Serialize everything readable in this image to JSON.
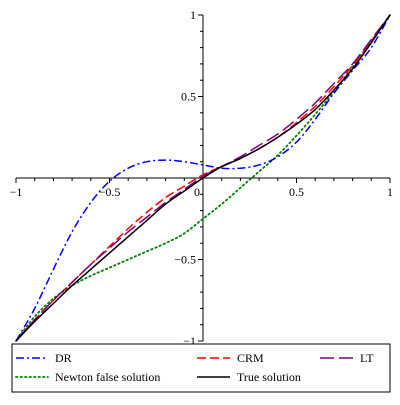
{
  "chart_data": {
    "type": "line",
    "title": "",
    "xlabel": "",
    "ylabel": "",
    "xlim": [
      -1,
      1
    ],
    "ylim": [
      -1,
      1
    ],
    "grid": false,
    "legend_position": "bottom",
    "x_ticks": [
      {
        "value": -1,
        "label": "−1"
      },
      {
        "value": -0.5,
        "label": "−0.5"
      },
      {
        "value": 0,
        "label": "0"
      },
      {
        "value": 0.5,
        "label": "0.5"
      },
      {
        "value": 1,
        "label": "1"
      }
    ],
    "y_ticks": [
      {
        "value": 1,
        "label": "1"
      },
      {
        "value": 0.5,
        "label": "0.5"
      },
      {
        "value": -0.5,
        "label": "−0.5"
      },
      {
        "value": -1,
        "label": "−1"
      }
    ],
    "series": [
      {
        "name": "DR",
        "color": "#0000ff",
        "dash": "dashdot",
        "x": [
          -1,
          -0.9,
          -0.8,
          -0.7,
          -0.6,
          -0.5,
          -0.4,
          -0.3,
          -0.2,
          -0.1,
          0,
          0.1,
          0.2,
          0.3,
          0.4,
          0.5,
          0.6,
          0.7,
          0.8,
          0.9,
          1
        ],
        "y": [
          -1,
          -0.8,
          -0.56,
          -0.33,
          -0.15,
          -0.02,
          0.06,
          0.1,
          0.11,
          0.1,
          0.08,
          0.06,
          0.06,
          0.08,
          0.13,
          0.22,
          0.36,
          0.52,
          0.66,
          0.8,
          1
        ]
      },
      {
        "name": "CRM",
        "color": "#ff0000",
        "dash": "dash",
        "x": [
          -1,
          -0.9,
          -0.8,
          -0.7,
          -0.6,
          -0.5,
          -0.4,
          -0.3,
          -0.2,
          -0.1,
          0,
          0.1,
          0.2,
          0.3,
          0.4,
          0.5,
          0.6,
          0.7,
          0.8,
          0.9,
          1
        ],
        "y": [
          -1,
          -0.87,
          -0.75,
          -0.64,
          -0.53,
          -0.42,
          -0.31,
          -0.21,
          -0.12,
          -0.05,
          0.02,
          0.07,
          0.12,
          0.18,
          0.25,
          0.34,
          0.44,
          0.56,
          0.69,
          0.84,
          1
        ]
      },
      {
        "name": "LT",
        "color": "#800080",
        "dash": "longdash",
        "x": [
          -1,
          -0.9,
          -0.8,
          -0.7,
          -0.6,
          -0.5,
          -0.4,
          -0.3,
          -0.2,
          -0.1,
          0,
          0.1,
          0.2,
          0.3,
          0.4,
          0.5,
          0.6,
          0.7,
          0.8,
          0.9,
          1
        ],
        "y": [
          -1,
          -0.87,
          -0.75,
          -0.64,
          -0.53,
          -0.43,
          -0.33,
          -0.24,
          -0.15,
          -0.07,
          0.01,
          0.07,
          0.13,
          0.2,
          0.27,
          0.36,
          0.46,
          0.58,
          0.7,
          0.85,
          1
        ]
      },
      {
        "name": "Newton false solution",
        "color": "#008000",
        "dash": "dot",
        "x": [
          -1,
          -0.9,
          -0.8,
          -0.7,
          -0.6,
          -0.5,
          -0.4,
          -0.3,
          -0.2,
          -0.1,
          0,
          0.1,
          0.2,
          0.3,
          0.4,
          0.5,
          0.6,
          0.7,
          0.8,
          0.9,
          1
        ],
        "y": [
          -1,
          -0.85,
          -0.74,
          -0.66,
          -0.6,
          -0.55,
          -0.5,
          -0.45,
          -0.4,
          -0.34,
          -0.25,
          -0.16,
          -0.06,
          0.04,
          0.14,
          0.26,
          0.39,
          0.53,
          0.68,
          0.84,
          1
        ]
      },
      {
        "name": "True solution",
        "color": "#000000",
        "dash": "solid",
        "x": [
          -1,
          -0.9,
          -0.8,
          -0.7,
          -0.6,
          -0.5,
          -0.4,
          -0.3,
          -0.2,
          -0.1,
          0,
          0.1,
          0.2,
          0.3,
          0.4,
          0.5,
          0.6,
          0.7,
          0.8,
          0.9,
          1
        ],
        "y": [
          -1,
          -0.88,
          -0.77,
          -0.66,
          -0.56,
          -0.46,
          -0.36,
          -0.26,
          -0.16,
          -0.08,
          0,
          0.07,
          0.12,
          0.18,
          0.25,
          0.33,
          0.42,
          0.54,
          0.67,
          0.83,
          1
        ]
      }
    ]
  }
}
